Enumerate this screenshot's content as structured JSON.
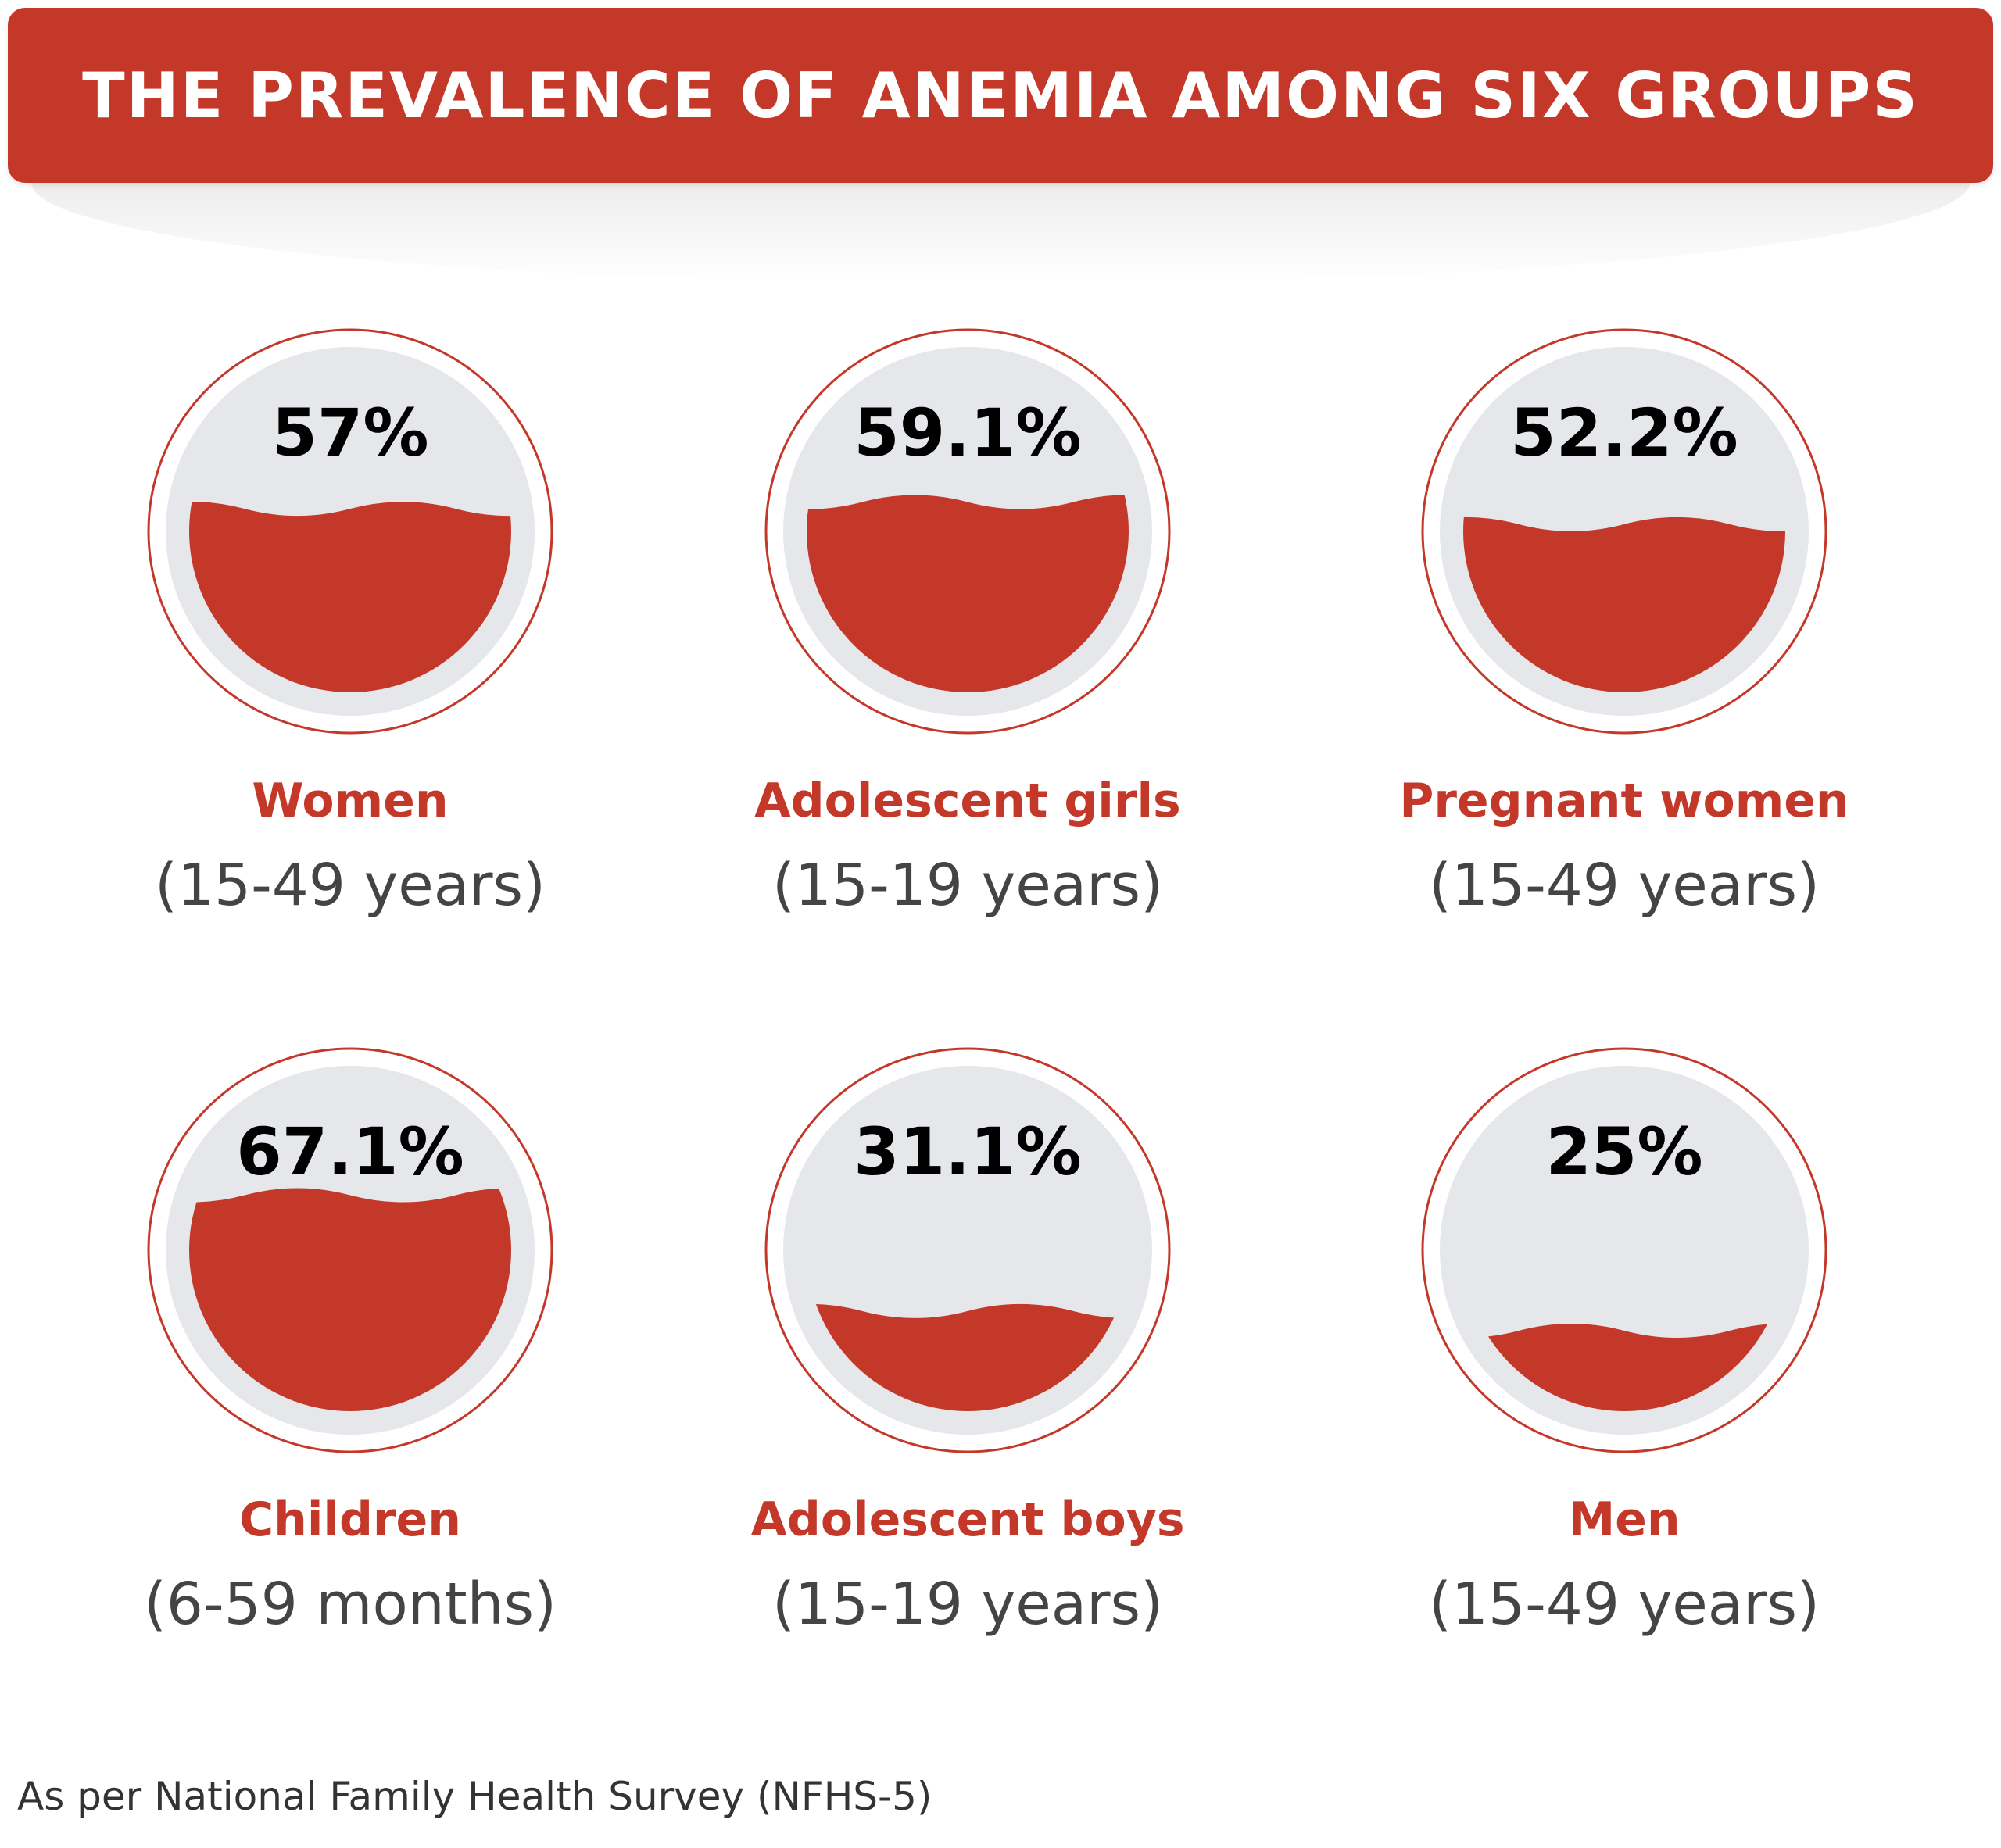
{
  "title": "THE PREVALENCE OF ANEMIA AMONG SIX GROUPS",
  "footer": "As per National Family Health Survey (NFHS-5)",
  "colors": {
    "accent": "#c4382a",
    "gauge_bg": "#e6e7ea",
    "value_text": "#000000",
    "sub_text": "#444444"
  },
  "groups": [
    {
      "name": "Women",
      "age": "(15-49 years)",
      "value_label": "57%"
    },
    {
      "name": "Adolescent girls",
      "age": "(15-19 years)",
      "value_label": "59.1%"
    },
    {
      "name": "Pregnant women",
      "age": "(15-49 years)",
      "value_label": "52.2%"
    },
    {
      "name": "Children",
      "age": "(6-59 months)",
      "value_label": "67.1%"
    },
    {
      "name": "Adolescent boys",
      "age": "(15-19 years)",
      "value_label": "31.1%"
    },
    {
      "name": "Men",
      "age": "(15-49 years)",
      "value_label": "25%"
    }
  ],
  "chart_data": {
    "type": "bar",
    "title": "THE PREVALENCE OF ANEMIA AMONG SIX GROUPS",
    "categories": [
      "Women (15-49 years)",
      "Adolescent girls (15-19 years)",
      "Pregnant women (15-49 years)",
      "Children (6-59 months)",
      "Adolescent boys (15-19 years)",
      "Men (15-49 years)"
    ],
    "values": [
      57,
      59.1,
      52.2,
      67.1,
      31.1,
      25
    ],
    "unit": "%",
    "ylim": [
      0,
      100
    ]
  }
}
